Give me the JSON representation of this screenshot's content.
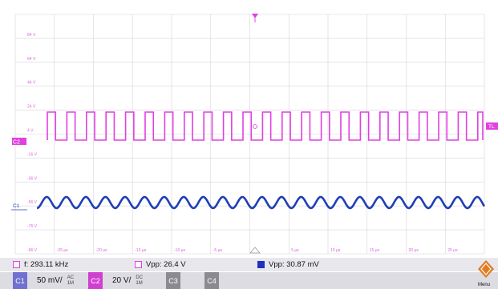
{
  "screen": {
    "colors": {
      "grid": "#d6d6d6",
      "axis_label": "#d966d9",
      "ch1": "#1f3fb5",
      "ch2": "#e040e0",
      "trig": "#e040e0"
    },
    "y_labels": [
      "84 V",
      "64 V",
      "44 V",
      "24 V",
      "4 V",
      "-16 V",
      "-36 V",
      "-56 V",
      "-76 V",
      "-96 V"
    ],
    "x_labels": [
      "-25 µs",
      "-20 µs",
      "-15 µs",
      "-10 µs",
      "-5 µs",
      "5 µs",
      "10 µs",
      "15 µs",
      "20 µs",
      "25 µs"
    ],
    "markers": {
      "ch2": "C2",
      "ch1": "C1",
      "trigger": "TL"
    }
  },
  "measurements": [
    {
      "swatch": "#e040e0",
      "swatch_style": "outline",
      "text": "f: 293.11 kHz"
    },
    {
      "swatch": "#e040e0",
      "swatch_style": "outline",
      "text": "Vpp: 26.4 V"
    },
    {
      "swatch": "#2030c0",
      "swatch_style": "filled",
      "text": "Vpp: 30.87 mV"
    }
  ],
  "channels": [
    {
      "tag": "C1",
      "color": "#7070d0",
      "scale": "50 mV/",
      "coupling": "AC",
      "coupling_sub": "1M"
    },
    {
      "tag": "C2",
      "color": "#d040d0",
      "scale": "20 V/",
      "coupling": "DC",
      "coupling_sub": "1M"
    },
    {
      "tag": "C3",
      "color": "#8a8a90",
      "scale": "",
      "coupling": "",
      "coupling_sub": ""
    },
    {
      "tag": "C4",
      "color": "#8a8a90",
      "scale": "",
      "coupling": "",
      "coupling_sub": ""
    }
  ],
  "menu": {
    "label": "Menu",
    "color": "#e07a20"
  }
}
